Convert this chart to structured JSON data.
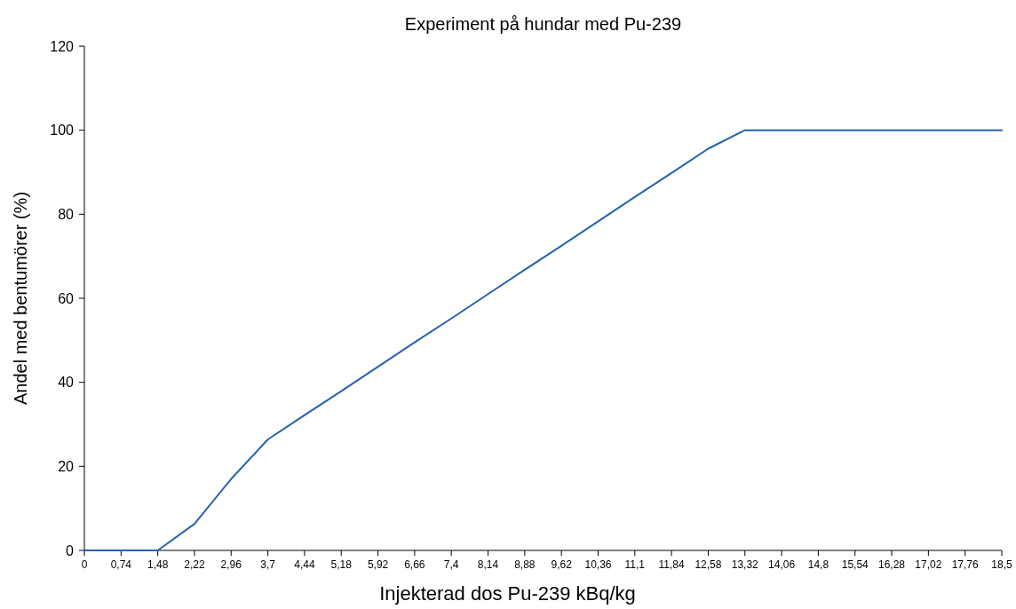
{
  "chart_data": {
    "type": "line",
    "title": "Experiment på hundar med Pu-239",
    "xlabel": "Injekterad dos Pu-239 kBq/kg",
    "ylabel": "Andel med bentumörer (%)",
    "categories": [
      "0",
      "0,74",
      "1,48",
      "2,22",
      "2,96",
      "3,7",
      "4,44",
      "5,18",
      "5,92",
      "6,66",
      "7,4",
      "8,14",
      "8,88",
      "9,62",
      "10,36",
      "11,1",
      "11,84",
      "12,58",
      "13,32",
      "14,06",
      "14,8",
      "15,54",
      "16,28",
      "17,02",
      "17,76",
      "18,5"
    ],
    "series": [
      {
        "color": "#2563ad",
        "values": [
          0,
          0,
          0,
          6.3,
          17,
          26.4,
          32.2,
          37.9,
          43.7,
          49.5,
          55.2,
          61,
          66.8,
          72.5,
          78.3,
          84.1,
          89.8,
          95.6,
          100,
          100,
          100,
          100,
          100,
          100,
          100,
          100
        ]
      }
    ],
    "ylim": [
      0,
      120
    ],
    "yticks": [
      0,
      20,
      40,
      60,
      80,
      100,
      120
    ],
    "grid": false,
    "marker": "none",
    "line_style": "solid"
  }
}
